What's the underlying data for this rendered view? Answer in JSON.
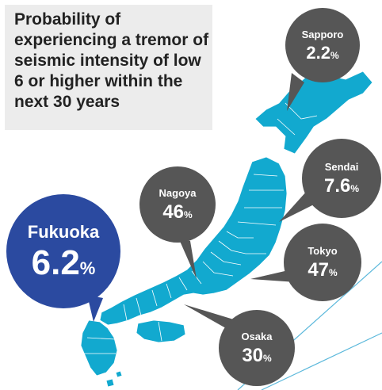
{
  "title": "Probability of experiencing a tremor of seismic intensity of low 6 or higher within the next 30 years",
  "colors": {
    "land": "#12a9cf",
    "bubble_gray": "#565656",
    "bubble_highlight": "#2b4aa0",
    "title_bg": "#ececec"
  },
  "unit": "%",
  "cities": [
    {
      "name": "Sapporo",
      "value": "2.2",
      "highlight": false
    },
    {
      "name": "Sendai",
      "value": "7.6",
      "highlight": false
    },
    {
      "name": "Nagoya",
      "value": "46",
      "highlight": false
    },
    {
      "name": "Tokyo",
      "value": "47",
      "highlight": false
    },
    {
      "name": "Osaka",
      "value": "30",
      "highlight": false
    },
    {
      "name": "Fukuoka",
      "value": "6.2",
      "highlight": true
    }
  ]
}
